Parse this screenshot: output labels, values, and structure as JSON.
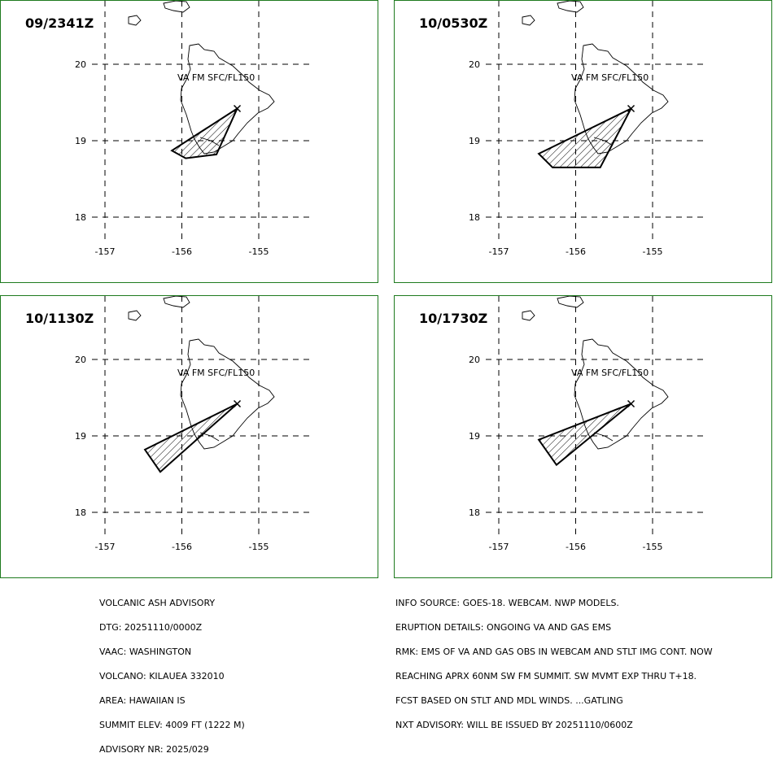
{
  "colors": {
    "panel_border": "#1e7a1e",
    "ink": "#000000",
    "background": "#ffffff"
  },
  "map": {
    "lon_ticks": [
      "-157",
      "-156",
      "-155"
    ],
    "lat_ticks": [
      "20",
      "19",
      "18"
    ],
    "ash_label": "VA FM SFC/FL150",
    "volcano_marker": "x-marker-icon",
    "panels": [
      {
        "time": "09/2341Z",
        "plume": [
          [
            -155.28,
            19.42
          ],
          [
            -156.13,
            18.87
          ],
          [
            -155.95,
            18.77
          ],
          [
            -155.55,
            18.82
          ]
        ]
      },
      {
        "time": "10/0530Z",
        "plume": [
          [
            -155.28,
            19.42
          ],
          [
            -156.48,
            18.83
          ],
          [
            -156.3,
            18.65
          ],
          [
            -155.68,
            18.65
          ]
        ]
      },
      {
        "time": "10/1130Z",
        "plume": [
          [
            -155.28,
            19.42
          ],
          [
            -156.48,
            18.82
          ],
          [
            -156.28,
            18.53
          ]
        ]
      },
      {
        "time": "10/1730Z",
        "plume": [
          [
            -155.28,
            19.42
          ],
          [
            -156.48,
            18.95
          ],
          [
            -156.25,
            18.62
          ]
        ]
      }
    ]
  },
  "advisory": {
    "left": [
      "VOLCANIC ASH ADVISORY",
      "DTG: 20251110/0000Z",
      "VAAC: WASHINGTON",
      "VOLCANO: KILAUEA 332010",
      "AREA: HAWAIIAN IS",
      "SUMMIT ELEV: 4009 FT (1222 M)",
      "ADVISORY NR: 2025/029"
    ],
    "right": [
      "INFO SOURCE: GOES-18. WEBCAM. NWP MODELS.",
      "ERUPTION DETAILS: ONGOING VA AND GAS EMS",
      "RMK: EMS OF VA AND GAS OBS IN WEBCAM AND STLT IMG CONT. NOW",
      "REACHING APRX 60NM SW FM SUMMIT. SW MVMT EXP THRU T+18.",
      "FCST BASED ON STLT AND MDL WINDS. ...GATLING",
      "NXT ADVISORY: WILL BE ISSUED BY 20251110/0600Z"
    ]
  }
}
